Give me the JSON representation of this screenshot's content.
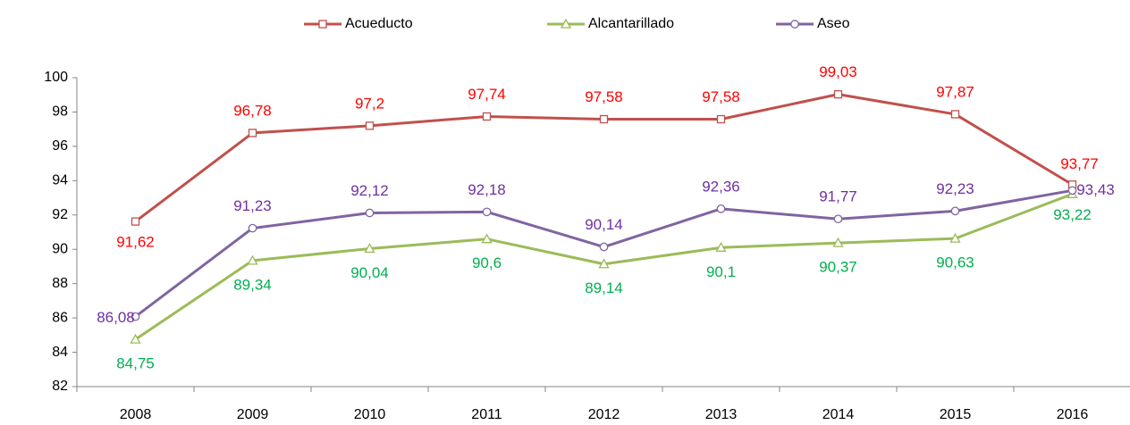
{
  "chart_data": {
    "type": "line",
    "categories": [
      "2008",
      "2009",
      "2010",
      "2011",
      "2012",
      "2013",
      "2014",
      "2015",
      "2016"
    ],
    "series": [
      {
        "name": "Acueducto",
        "color": "#c0504d",
        "label_color": "#ff0000",
        "marker": "square",
        "values": [
          91.62,
          96.78,
          97.2,
          97.74,
          97.58,
          97.58,
          99.03,
          97.87,
          93.77
        ],
        "value_labels": [
          "91,62",
          "96,78",
          "97,2",
          "97,74",
          "97,58",
          "97,58",
          "99,03",
          "97,87",
          "93,77"
        ]
      },
      {
        "name": "Alcantarillado",
        "color": "#9bbb59",
        "label_color": "#00b050",
        "marker": "triangle",
        "values": [
          84.75,
          89.34,
          90.04,
          90.6,
          89.14,
          90.1,
          90.37,
          90.63,
          93.22
        ],
        "value_labels": [
          "84,75",
          "89,34",
          "90,04",
          "90,6",
          "89,14",
          "90,1",
          "90,37",
          "90,63",
          "93,22"
        ]
      },
      {
        "name": "Aseo",
        "color": "#8064a2",
        "label_color": "#7030a0",
        "marker": "circle",
        "values": [
          86.08,
          91.23,
          92.12,
          92.18,
          90.14,
          92.36,
          91.77,
          92.23,
          93.43
        ],
        "value_labels": [
          "86,08",
          "91,23",
          "92,12",
          "92,18",
          "90,14",
          "92,36",
          "91,77",
          "92,23",
          "93,43"
        ]
      }
    ],
    "ylim": [
      82,
      100
    ],
    "yticks": [
      82,
      84,
      86,
      88,
      90,
      92,
      94,
      96,
      98,
      100
    ],
    "legend": "top",
    "grid": false
  }
}
